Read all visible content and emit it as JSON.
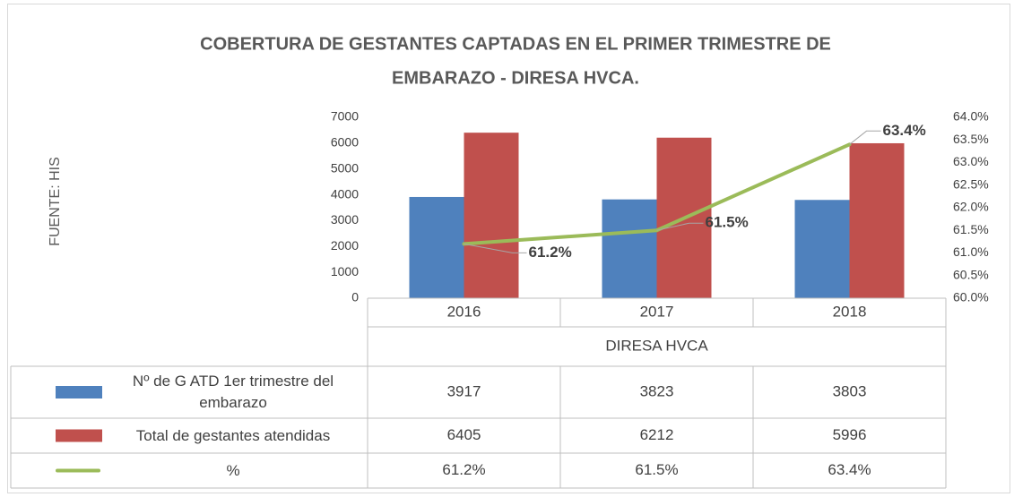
{
  "chart_data": {
    "type": "bar",
    "title": "COBERTURA DE GESTANTES CAPTADAS EN EL PRIMER TRIMESTRE DE EMBARAZO - DIRESA HVCA.",
    "source": "FUENTE: HIS",
    "xlabel": "DIRESA HVCA",
    "categories": [
      "2016",
      "2017",
      "2018"
    ],
    "series": [
      {
        "name": "Nº de G ATD 1er trimestre del embarazo",
        "type": "bar",
        "color": "#4f81bd",
        "values": [
          3917,
          3823,
          3803
        ]
      },
      {
        "name": "Total de gestantes atendidas",
        "type": "bar",
        "color": "#c0504d",
        "values": [
          6405,
          6212,
          5996
        ]
      },
      {
        "name": "%",
        "type": "line",
        "axis": "y2",
        "color": "#9bbb59",
        "values": [
          61.2,
          61.5,
          63.4
        ],
        "value_labels": [
          "61.2%",
          "61.5%",
          "63.4%"
        ]
      }
    ],
    "ylim": [
      0,
      7000
    ],
    "yticks": [
      0,
      1000,
      2000,
      3000,
      4000,
      5000,
      6000,
      7000
    ],
    "y2lim": [
      60,
      64
    ],
    "y2ticks": [
      {
        "value": 60,
        "label": "60.0%"
      },
      {
        "value": 60.5,
        "label": "60.5%"
      },
      {
        "value": 61,
        "label": "61.0%"
      },
      {
        "value": 61.5,
        "label": "61.5%"
      },
      {
        "value": 62,
        "label": "62.0%"
      },
      {
        "value": 62.5,
        "label": "62.5%"
      },
      {
        "value": 63,
        "label": "63.0%"
      },
      {
        "value": 63.5,
        "label": "63.5%"
      },
      {
        "value": 64,
        "label": "64.0%"
      }
    ],
    "data_table": true
  }
}
